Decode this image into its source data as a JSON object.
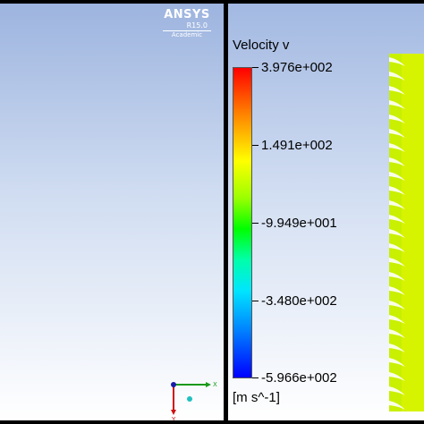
{
  "branding": {
    "product": "ANSYS",
    "version": "R15.0",
    "edition": "Academic"
  },
  "axes_triad": {
    "x_label": "X",
    "y_label": "Y",
    "colors": {
      "x": "#1a9a1a",
      "y": "#cc1111",
      "origin": "#1a1aaa",
      "marker": "#20c0c0"
    }
  },
  "legend": {
    "title": "Velocity v",
    "unit": "[m s^-1]",
    "ticks": [
      {
        "label": "3.976e+002",
        "value": 397.6
      },
      {
        "label": "1.491e+002",
        "value": 149.1
      },
      {
        "label": "-9.949e+001",
        "value": -99.49
      },
      {
        "label": "-3.480e+002",
        "value": -348.0
      },
      {
        "label": "-5.966e+002",
        "value": -596.6
      }
    ],
    "colormap": [
      "#ff0000",
      "#ff8c00",
      "#ffff00",
      "#9bff00",
      "#00ff00",
      "#00ffaa",
      "#00e5ff",
      "#0088ff",
      "#0000ff"
    ]
  },
  "contour": {
    "dominant_color": "#c8f000",
    "edge_color": "#ffffff"
  }
}
